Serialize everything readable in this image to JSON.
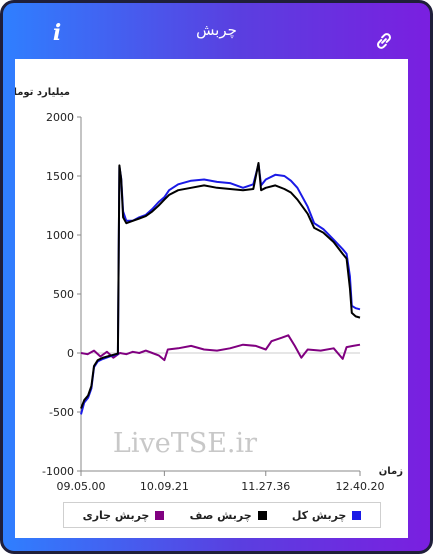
{
  "header": {
    "title": "چربش",
    "info_icon": "info-icon",
    "link_icon": "link-icon"
  },
  "watermark": "LiveTSE.ir",
  "colors": {
    "total": "#1a1ae6",
    "queue": "#000000",
    "current": "#800080",
    "header_gradient_start": "#2f7fff",
    "header_gradient_end": "#7a1fe0"
  },
  "chart_data": {
    "type": "line",
    "ylabel": "میلیارد تومان",
    "xlabel": "زمان",
    "ylim": [
      -1000,
      2000
    ],
    "yticks": [
      "2000",
      "1500",
      "1000",
      "500",
      "0",
      "-500",
      "-1000"
    ],
    "xtick_labels": [
      "09.05.00",
      "10.09.21",
      "11.27.36",
      "12.40.20"
    ],
    "x_range": [
      "09.05.00",
      "12.40.20"
    ],
    "grid": false,
    "legend_position": "bottom",
    "series": [
      {
        "name": "چربش کل",
        "color": "#1a1ae6",
        "points": [
          [
            "09.05.00",
            -520
          ],
          [
            "09.07.30",
            -420
          ],
          [
            "09.10.30",
            -380
          ],
          [
            "09.13.00",
            -300
          ],
          [
            "09.15.00",
            -120
          ],
          [
            "09.18.00",
            -70
          ],
          [
            "09.22.00",
            -50
          ],
          [
            "09.27.00",
            -30
          ],
          [
            "09.30.00",
            -20
          ],
          [
            "09.33.30",
            -10
          ],
          [
            "09.34.40",
            1580
          ],
          [
            "09.36.00",
            1480
          ],
          [
            "09.37.30",
            1200
          ],
          [
            "09.40.00",
            1120
          ],
          [
            "09.45.00",
            1120
          ],
          [
            "09.50.00",
            1150
          ],
          [
            "09.55.00",
            1170
          ],
          [
            "10.00.00",
            1220
          ],
          [
            "10.05.00",
            1280
          ],
          [
            "10.09.21",
            1320
          ],
          [
            "10.13.00",
            1380
          ],
          [
            "10.20.00",
            1430
          ],
          [
            "10.30.00",
            1460
          ],
          [
            "10.40.00",
            1470
          ],
          [
            "10.50.00",
            1450
          ],
          [
            "11.00.00",
            1440
          ],
          [
            "11.10.00",
            1400
          ],
          [
            "11.18.00",
            1430
          ],
          [
            "11.22.00",
            1600
          ],
          [
            "11.24.00",
            1420
          ],
          [
            "11.27.36",
            1470
          ],
          [
            "11.35.00",
            1510
          ],
          [
            "11.42.00",
            1500
          ],
          [
            "11.47.00",
            1460
          ],
          [
            "11.52.00",
            1400
          ],
          [
            "12.00.00",
            1240
          ],
          [
            "12.05.00",
            1100
          ],
          [
            "12.12.00",
            1050
          ],
          [
            "12.20.00",
            960
          ],
          [
            "12.27.00",
            880
          ],
          [
            "12.30.00",
            840
          ],
          [
            "12.32.30",
            650
          ],
          [
            "12.34.00",
            400
          ],
          [
            "12.37.00",
            380
          ],
          [
            "12.40.20",
            370
          ]
        ]
      },
      {
        "name": "چربش صف",
        "color": "#000000",
        "points": [
          [
            "09.05.00",
            -470
          ],
          [
            "09.07.30",
            -400
          ],
          [
            "09.10.30",
            -360
          ],
          [
            "09.13.00",
            -280
          ],
          [
            "09.15.00",
            -110
          ],
          [
            "09.18.00",
            -60
          ],
          [
            "09.22.00",
            -40
          ],
          [
            "09.27.00",
            -25
          ],
          [
            "09.30.00",
            -15
          ],
          [
            "09.33.30",
            -5
          ],
          [
            "09.34.40",
            1590
          ],
          [
            "09.36.00",
            1470
          ],
          [
            "09.37.30",
            1150
          ],
          [
            "09.40.00",
            1100
          ],
          [
            "09.45.00",
            1120
          ],
          [
            "09.50.00",
            1140
          ],
          [
            "09.55.00",
            1160
          ],
          [
            "10.00.00",
            1200
          ],
          [
            "10.05.00",
            1250
          ],
          [
            "10.09.21",
            1300
          ],
          [
            "10.13.00",
            1340
          ],
          [
            "10.20.00",
            1380
          ],
          [
            "10.30.00",
            1400
          ],
          [
            "10.40.00",
            1420
          ],
          [
            "10.50.00",
            1400
          ],
          [
            "11.00.00",
            1390
          ],
          [
            "11.10.00",
            1380
          ],
          [
            "11.18.00",
            1390
          ],
          [
            "11.22.00",
            1610
          ],
          [
            "11.24.00",
            1380
          ],
          [
            "11.27.36",
            1400
          ],
          [
            "11.35.00",
            1420
          ],
          [
            "11.42.00",
            1390
          ],
          [
            "11.47.00",
            1360
          ],
          [
            "11.52.00",
            1300
          ],
          [
            "12.00.00",
            1180
          ],
          [
            "12.05.00",
            1060
          ],
          [
            "12.12.00",
            1020
          ],
          [
            "12.20.00",
            940
          ],
          [
            "12.27.00",
            840
          ],
          [
            "12.30.00",
            800
          ],
          [
            "12.32.30",
            550
          ],
          [
            "12.34.00",
            340
          ],
          [
            "12.37.00",
            310
          ],
          [
            "12.40.20",
            300
          ]
        ]
      },
      {
        "name": "چربش جاری",
        "color": "#800080",
        "points": [
          [
            "09.05.00",
            0
          ],
          [
            "09.10.00",
            -10
          ],
          [
            "09.15.00",
            20
          ],
          [
            "09.20.00",
            -30
          ],
          [
            "09.25.00",
            10
          ],
          [
            "09.30.00",
            -40
          ],
          [
            "09.35.00",
            0
          ],
          [
            "09.40.00",
            -10
          ],
          [
            "09.45.00",
            10
          ],
          [
            "09.50.00",
            0
          ],
          [
            "09.55.00",
            20
          ],
          [
            "10.00.00",
            0
          ],
          [
            "10.05.00",
            -20
          ],
          [
            "10.09.21",
            -60
          ],
          [
            "10.12.00",
            30
          ],
          [
            "10.20.00",
            40
          ],
          [
            "10.30.00",
            60
          ],
          [
            "10.40.00",
            30
          ],
          [
            "10.50.00",
            20
          ],
          [
            "11.00.00",
            40
          ],
          [
            "11.10.00",
            70
          ],
          [
            "11.20.00",
            60
          ],
          [
            "11.27.36",
            30
          ],
          [
            "11.32.00",
            100
          ],
          [
            "11.40.00",
            130
          ],
          [
            "11.45.00",
            150
          ],
          [
            "11.50.00",
            60
          ],
          [
            "11.55.00",
            -40
          ],
          [
            "12.00.00",
            30
          ],
          [
            "12.10.00",
            20
          ],
          [
            "12.20.00",
            40
          ],
          [
            "12.27.00",
            -50
          ],
          [
            "12.30.00",
            50
          ],
          [
            "12.35.00",
            60
          ],
          [
            "12.40.20",
            70
          ]
        ]
      }
    ]
  }
}
